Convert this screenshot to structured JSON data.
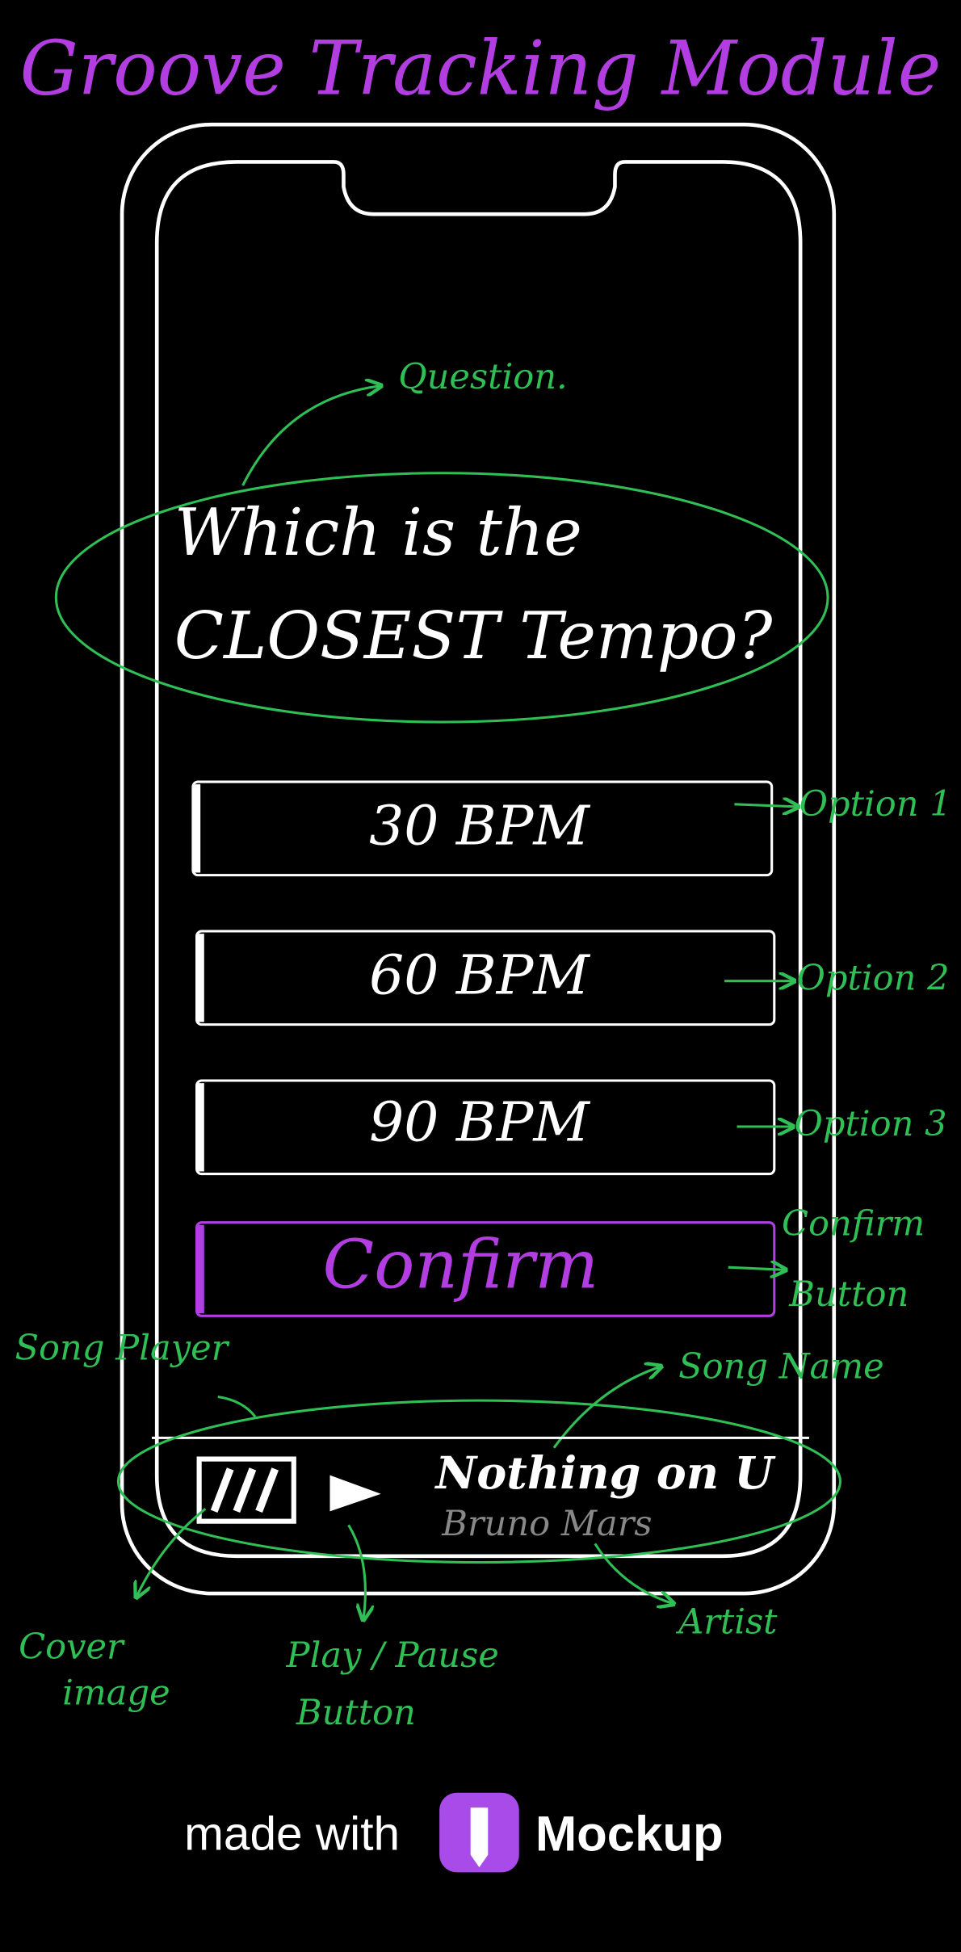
{
  "title": "Groove Tracking Module",
  "screen": {
    "question": [
      "Which is the",
      "CLOSEST Tempo?"
    ],
    "options": [
      "30 BPM",
      "60 BPM",
      "90 BPM"
    ],
    "confirm": "Confirm",
    "player": {
      "song": "Nothing on U",
      "artist": "Bruno Mars"
    }
  },
  "annotations": {
    "question": "Question.",
    "option_1": "Option 1",
    "option_2": "Option 2",
    "option_3": "Option 3",
    "confirm_button": [
      "Confirm",
      "Button"
    ],
    "song_player": "Song Player",
    "song_name": "Song Name",
    "cover_image": [
      "Cover",
      "image"
    ],
    "play_pause_button": [
      "Play / Pause",
      "Button"
    ],
    "artist": "Artist"
  },
  "footer": {
    "made_with": "made with",
    "brand": "Mockup"
  }
}
